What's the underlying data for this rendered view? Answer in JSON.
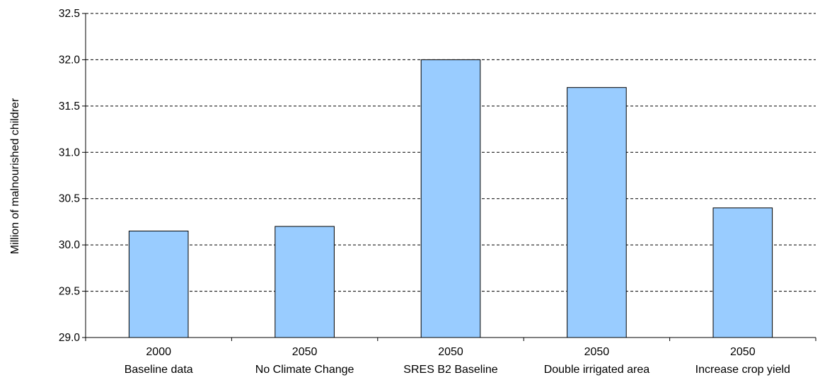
{
  "chart_data": {
    "type": "bar",
    "ylabel": "Million of malnourished childrer",
    "ylim": [
      29.0,
      32.5
    ],
    "yticks": [
      "29.0",
      "29.5",
      "30.0",
      "30.5",
      "31.0",
      "31.5",
      "32.0",
      "32.5"
    ],
    "grid": "horizontal dashed",
    "legend": "none",
    "categories": [
      {
        "line1": "2000",
        "line2": "Baseline data"
      },
      {
        "line1": "2050",
        "line2": "No Climate Change"
      },
      {
        "line1": "2050",
        "line2": "SRES B2 Baseline"
      },
      {
        "line1": "2050",
        "line2": "Double irrigated area"
      },
      {
        "line1": "2050",
        "line2": "Increase crop yield"
      }
    ],
    "values": [
      30.15,
      30.2,
      32.0,
      31.7,
      30.4
    ],
    "colors": {
      "bar_fill": "#99ccff",
      "bar_stroke": "#000000",
      "grid": "#000000"
    }
  }
}
